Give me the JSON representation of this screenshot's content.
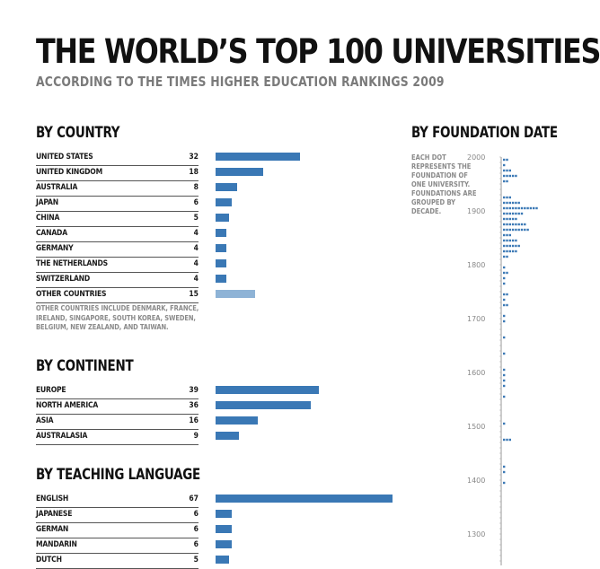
{
  "title": "THE WORLD’S TOP 100 UNIVERSITIES",
  "subtitle": "ACCORDING TO THE TIMES HIGHER EDUCATION RANKINGS 2009",
  "sections": {
    "country": "BY COUNTRY",
    "continent": "BY CONTINENT",
    "language": "BY TEACHING LANGUAGE",
    "foundation": "BY FOUNDATION DATE"
  },
  "country_note": "OTHER COUNTRIES INCLUDE DENMARK, FRANCE, IRELAND, SINGAPORE, SOUTH KOREA, SWEDEN, BELGIUM, NEW ZEALAND, AND TAIWAN.",
  "foundation_note": "EACH DOT REPRESENTS THE FOUNDATION OF ONE UNIVERSITY. FOUNDATIONS ARE GROUPED BY DECADE.",
  "colors": {
    "bar": "#3a78b5",
    "bar_other": "#8eb3d6",
    "dot": "#3a78b5"
  },
  "chart_data": [
    {
      "type": "bar",
      "title": "BY COUNTRY",
      "categories": [
        "UNITED STATES",
        "UNITED KINGDOM",
        "AUSTRALIA",
        "JAPAN",
        "CHINA",
        "CANADA",
        "GERMANY",
        "THE NETHERLANDS",
        "SWITZERLAND",
        "OTHER COUNTRIES"
      ],
      "values": [
        32,
        18,
        8,
        6,
        5,
        4,
        4,
        4,
        4,
        15
      ]
    },
    {
      "type": "bar",
      "title": "BY CONTINENT",
      "categories": [
        "EUROPE",
        "NORTH AMERICA",
        "ASIA",
        "AUSTRALASIA"
      ],
      "values": [
        39,
        36,
        16,
        9
      ]
    },
    {
      "type": "bar",
      "title": "BY TEACHING LANGUAGE",
      "categories": [
        "ENGLISH",
        "JAPANESE",
        "GERMAN",
        "MANDARIN",
        "DUTCH"
      ],
      "values": [
        67,
        6,
        6,
        6,
        5
      ]
    },
    {
      "type": "scatter",
      "title": "BY FOUNDATION DATE",
      "y_ticks": [
        "2000",
        "1900",
        "1800",
        "1700",
        "1600",
        "1500",
        "1400",
        "1300"
      ],
      "ylim": [
        1290,
        2000
      ],
      "decades": [
        {
          "decade": 1990,
          "count": 2
        },
        {
          "decade": 1980,
          "count": 1
        },
        {
          "decade": 1970,
          "count": 3
        },
        {
          "decade": 1960,
          "count": 5
        },
        {
          "decade": 1950,
          "count": 2
        },
        {
          "decade": 1920,
          "count": 3
        },
        {
          "decade": 1910,
          "count": 6
        },
        {
          "decade": 1900,
          "count": 12
        },
        {
          "decade": 1890,
          "count": 7
        },
        {
          "decade": 1880,
          "count": 5
        },
        {
          "decade": 1870,
          "count": 8
        },
        {
          "decade": 1860,
          "count": 9
        },
        {
          "decade": 1850,
          "count": 3
        },
        {
          "decade": 1840,
          "count": 5
        },
        {
          "decade": 1830,
          "count": 6
        },
        {
          "decade": 1820,
          "count": 5
        },
        {
          "decade": 1810,
          "count": 2
        },
        {
          "decade": 1790,
          "count": 1
        },
        {
          "decade": 1780,
          "count": 2
        },
        {
          "decade": 1770,
          "count": 1
        },
        {
          "decade": 1760,
          "count": 1
        },
        {
          "decade": 1740,
          "count": 2
        },
        {
          "decade": 1730,
          "count": 1
        },
        {
          "decade": 1720,
          "count": 2
        },
        {
          "decade": 1700,
          "count": 1
        },
        {
          "decade": 1690,
          "count": 1
        },
        {
          "decade": 1660,
          "count": 1
        },
        {
          "decade": 1630,
          "count": 1
        },
        {
          "decade": 1600,
          "count": 1
        },
        {
          "decade": 1590,
          "count": 1
        },
        {
          "decade": 1580,
          "count": 1
        },
        {
          "decade": 1570,
          "count": 1
        },
        {
          "decade": 1550,
          "count": 1
        },
        {
          "decade": 1500,
          "count": 1
        },
        {
          "decade": 1470,
          "count": 3
        },
        {
          "decade": 1420,
          "count": 1
        },
        {
          "decade": 1410,
          "count": 1
        },
        {
          "decade": 1390,
          "count": 1
        }
      ]
    }
  ]
}
